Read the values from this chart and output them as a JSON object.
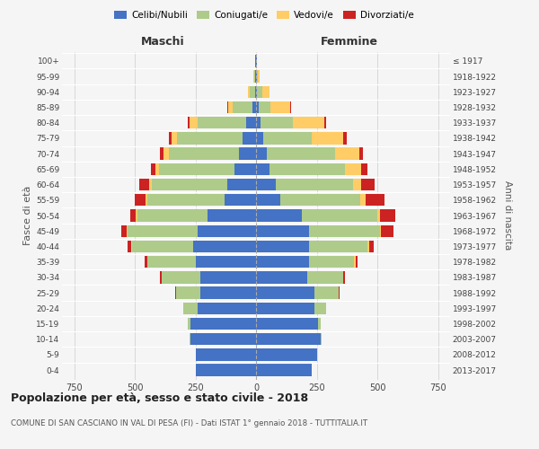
{
  "age_groups": [
    "0-4",
    "5-9",
    "10-14",
    "15-19",
    "20-24",
    "25-29",
    "30-34",
    "35-39",
    "40-44",
    "45-49",
    "50-54",
    "55-59",
    "60-64",
    "65-69",
    "70-74",
    "75-79",
    "80-84",
    "85-89",
    "90-94",
    "95-99",
    "100+"
  ],
  "birth_years": [
    "2013-2017",
    "2008-2012",
    "2003-2007",
    "1998-2002",
    "1993-1997",
    "1988-1992",
    "1983-1987",
    "1978-1982",
    "1973-1977",
    "1968-1972",
    "1963-1967",
    "1958-1962",
    "1953-1957",
    "1948-1952",
    "1943-1947",
    "1938-1942",
    "1933-1937",
    "1928-1932",
    "1923-1927",
    "1918-1922",
    "≤ 1917"
  ],
  "males": {
    "celibe": [
      250,
      250,
      270,
      270,
      240,
      230,
      230,
      250,
      260,
      240,
      200,
      130,
      120,
      90,
      70,
      55,
      40,
      15,
      5,
      3,
      2
    ],
    "coniugato": [
      0,
      0,
      5,
      10,
      60,
      100,
      160,
      200,
      250,
      290,
      290,
      320,
      310,
      310,
      290,
      270,
      200,
      80,
      20,
      5,
      0
    ],
    "vedovo": [
      0,
      0,
      0,
      0,
      0,
      0,
      0,
      0,
      5,
      5,
      5,
      5,
      10,
      15,
      20,
      25,
      35,
      20,
      8,
      2,
      0
    ],
    "divorziato": [
      0,
      0,
      0,
      0,
      0,
      5,
      5,
      10,
      15,
      20,
      25,
      45,
      40,
      20,
      15,
      10,
      5,
      2,
      0,
      0,
      0
    ]
  },
  "females": {
    "nubile": [
      230,
      250,
      265,
      255,
      240,
      240,
      210,
      220,
      220,
      220,
      190,
      100,
      80,
      55,
      45,
      30,
      20,
      10,
      5,
      3,
      2
    ],
    "coniugata": [
      0,
      0,
      5,
      10,
      50,
      100,
      150,
      185,
      240,
      290,
      310,
      330,
      320,
      310,
      280,
      200,
      130,
      50,
      20,
      5,
      0
    ],
    "vedova": [
      0,
      0,
      0,
      0,
      0,
      0,
      0,
      5,
      5,
      5,
      10,
      20,
      35,
      70,
      100,
      130,
      130,
      80,
      30,
      8,
      2
    ],
    "divorziata": [
      0,
      0,
      0,
      0,
      0,
      5,
      5,
      10,
      20,
      50,
      65,
      80,
      55,
      25,
      15,
      15,
      10,
      5,
      0,
      0,
      0
    ]
  },
  "colors": {
    "celibe_nubile": "#4472C4",
    "coniugato": "#AECB8A",
    "vedovo": "#FFCC66",
    "divorziato": "#CC2222"
  },
  "title": "Popolazione per età, sesso e stato civile - 2018",
  "subtitle": "COMUNE DI SAN CASCIANO IN VAL DI PESA (FI) - Dati ISTAT 1° gennaio 2018 - TUTTITALIA.IT",
  "xlabel_left": "Maschi",
  "xlabel_right": "Femmine",
  "ylabel_left": "Fasce di età",
  "ylabel_right": "Anni di nascita",
  "xlim": 800,
  "bg_color": "#f5f5f5",
  "grid_color": "#cccccc"
}
